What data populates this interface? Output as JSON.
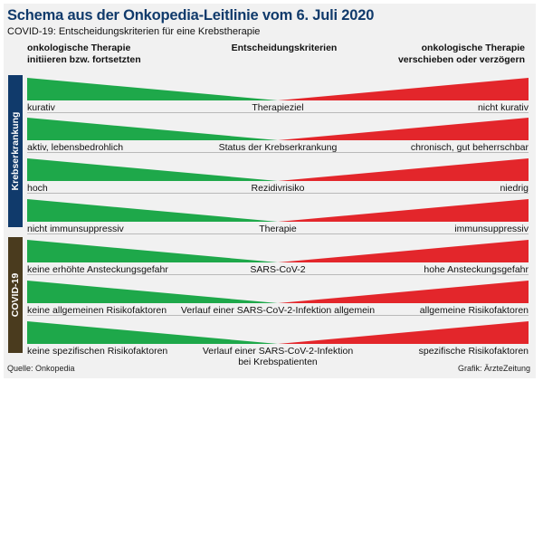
{
  "title": "Schema aus der Onkopedia-Leitlinie vom 6. Juli 2020",
  "subtitle": "COVID-19: Entscheidungskriterien für eine Krebstherapie",
  "columns": {
    "left": "onkologische Therapie\ninitiieren bzw. fortsetzten",
    "center": "Entscheidungskriterien",
    "right": "onkologische Therapie\nverschieben oder verzögern"
  },
  "groups": {
    "krebs": "Krebserkrankung",
    "covid": "COVID-19"
  },
  "rows": [
    {
      "left": "kurativ",
      "center": "Therapieziel",
      "right": "nicht kurativ"
    },
    {
      "left": "aktiv, lebensbedrohlich",
      "center": "Status der Krebserkrankung",
      "right": "chronisch, gut beherrschbar"
    },
    {
      "left": "hoch",
      "center": "Rezidivrisiko",
      "right": "niedrig"
    },
    {
      "left": "nicht immunsuppressiv",
      "center": "Therapie",
      "right": "immunsuppressiv"
    },
    {
      "left": "keine erhöhte Ansteckungsgefahr",
      "center": "SARS-CoV-2",
      "right": "hohe Ansteckungsgefahr"
    },
    {
      "left": "keine allgemeinen Risikofaktoren",
      "center": "Verlauf einer SARS-CoV-2-Infektion allgemein",
      "right": "allgemeine Risikofaktoren"
    },
    {
      "left": "keine spezifischen Risikofaktoren",
      "center": "Verlauf einer SARS-CoV-2-Infektion\nbei Krebspatienten",
      "right": "spezifische Risikofaktoren"
    }
  ],
  "source": "Quelle: Onkopedia",
  "credit": "Grafik: ÄrzteZeitung",
  "colors": {
    "green": "#1ea84a",
    "red": "#e3262b",
    "navy": "#103a6b",
    "brown": "#4a3b1e"
  }
}
